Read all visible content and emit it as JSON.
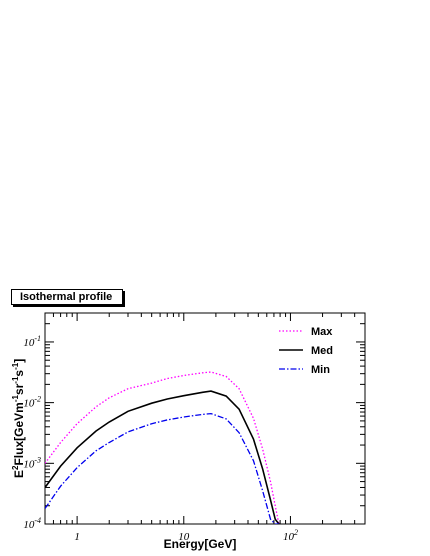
{
  "chart_data": {
    "type": "line",
    "title": "Isothermal profile",
    "xlabel": "Energy[GeV]",
    "ylabel_parts": {
      "e": "E",
      "e_exp": "2",
      "flux": "Flux[GeVm",
      "m_exp": "-1",
      "sr": "sr",
      "sr_exp": "-1",
      "s": "s",
      "s_exp": "-1",
      "close": "]"
    },
    "x_scale": "log",
    "y_scale": "log",
    "xlim": [
      0.5,
      500
    ],
    "ylim": [
      0.0001,
      0.3
    ],
    "x_ticks": [
      {
        "value": 1,
        "label": "1"
      },
      {
        "value": 10,
        "label": "10"
      },
      {
        "value": 100,
        "label": "10",
        "exp": "2"
      }
    ],
    "y_ticks": [
      {
        "value": 0.0001,
        "label": "10",
        "exp": "-4"
      },
      {
        "value": 0.001,
        "label": "10",
        "exp": "-3"
      },
      {
        "value": 0.01,
        "label": "10",
        "exp": "-2"
      },
      {
        "value": 0.1,
        "label": "10",
        "exp": "-1"
      }
    ],
    "legend_position": "top-right",
    "grid": false,
    "series": [
      {
        "name": "Max",
        "color": "#ff00ff",
        "dash": "dotted",
        "x": [
          0.5,
          0.7,
          1,
          1.5,
          2,
          3,
          5,
          7,
          10,
          15,
          18,
          25,
          33,
          45,
          55,
          65,
          72,
          78
        ],
        "y": [
          0.001,
          0.0022,
          0.0045,
          0.0085,
          0.012,
          0.017,
          0.021,
          0.025,
          0.028,
          0.031,
          0.032,
          0.027,
          0.017,
          0.0055,
          0.0017,
          0.0005,
          0.0002,
          0.0001
        ]
      },
      {
        "name": "Med",
        "color": "#000000",
        "dash": "solid",
        "x": [
          0.5,
          0.7,
          1,
          1.5,
          2,
          3,
          5,
          7,
          10,
          15,
          18,
          25,
          33,
          45,
          55,
          65,
          72,
          78
        ],
        "y": [
          0.0004,
          0.0009,
          0.0018,
          0.0034,
          0.0048,
          0.0072,
          0.0098,
          0.0115,
          0.013,
          0.0148,
          0.0155,
          0.0128,
          0.0078,
          0.0025,
          0.0008,
          0.00025,
          0.00012,
          0.0001
        ]
      },
      {
        "name": "Min",
        "color": "#0000ee",
        "dash": "dashdot",
        "x": [
          0.5,
          0.7,
          1,
          1.5,
          2,
          3,
          5,
          7,
          10,
          15,
          18,
          25,
          33,
          45,
          55,
          65,
          72,
          78
        ],
        "y": [
          0.00018,
          0.00042,
          0.00085,
          0.0016,
          0.0022,
          0.0033,
          0.0045,
          0.0052,
          0.0058,
          0.0064,
          0.0066,
          0.0054,
          0.0032,
          0.0011,
          0.00035,
          0.00012,
          0.0001,
          0.0001
        ]
      }
    ]
  }
}
